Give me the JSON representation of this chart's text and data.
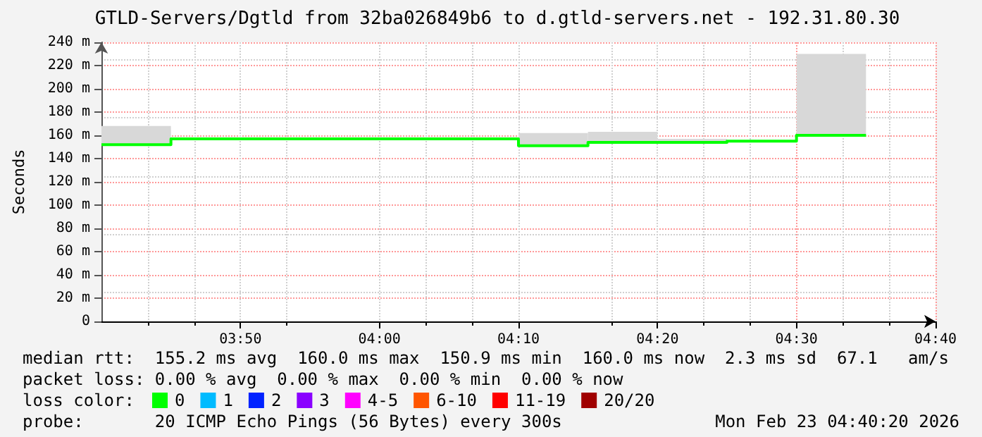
{
  "chart_data": {
    "type": "step",
    "title": "GTLD-Servers/Dgtld from 32ba026849b6 to d.gtld-servers.net - 192.31.80.30",
    "ylabel": "Seconds",
    "legend_title": "loss color:",
    "x": [
      "2026-02-23T03:40",
      "2026-02-23T03:45",
      "2026-02-23T03:50",
      "2026-02-23T03:55",
      "2026-02-23T04:00",
      "2026-02-23T04:05",
      "2026-02-23T04:10",
      "2026-02-23T04:15",
      "2026-02-23T04:20",
      "2026-02-23T04:25",
      "2026-02-23T04:30",
      "2026-02-23T04:35"
    ],
    "series": [
      {
        "name": "0",
        "color": "#00ff00",
        "values": [
          152,
          152,
          157,
          157,
          157,
          157,
          157,
          151,
          154,
          154,
          155,
          160
        ],
        "lower": [
          152,
          152,
          null,
          null,
          null,
          null,
          null,
          151,
          154,
          154,
          null,
          160
        ],
        "upper": [
          168,
          168,
          null,
          null,
          null,
          null,
          null,
          162,
          163,
          157,
          null,
          230
        ]
      },
      {
        "name": "1",
        "color": "#00bbff",
        "values": [
          null,
          null,
          null,
          null,
          null,
          null,
          null,
          null,
          null,
          null,
          null,
          null
        ]
      },
      {
        "name": "2",
        "color": "#0022ff",
        "values": [
          null,
          null,
          null,
          null,
          null,
          null,
          null,
          null,
          null,
          null,
          null,
          null
        ]
      },
      {
        "name": "3",
        "color": "#8a00ff",
        "values": [
          null,
          null,
          null,
          null,
          null,
          null,
          null,
          null,
          null,
          null,
          null,
          null
        ]
      },
      {
        "name": "4-5",
        "color": "#ff00ff",
        "values": [
          null,
          null,
          null,
          null,
          null,
          null,
          null,
          null,
          null,
          null,
          null,
          null
        ]
      },
      {
        "name": "6-10",
        "color": "#ff5500",
        "values": [
          null,
          null,
          null,
          null,
          null,
          null,
          null,
          null,
          null,
          null,
          null,
          null
        ]
      },
      {
        "name": "11-19",
        "color": "#ff0000",
        "values": [
          null,
          null,
          null,
          null,
          null,
          null,
          null,
          null,
          null,
          null,
          null,
          null
        ]
      },
      {
        "name": "20/20",
        "color": "#a00000",
        "values": [
          null,
          null,
          null,
          null,
          null,
          null,
          null,
          null,
          null,
          null,
          null,
          null
        ]
      }
    ],
    "xlim": [
      "2026-02-23T03:40",
      "2026-02-23T04:40"
    ],
    "xticks": [
      {
        "value": "2026-02-23T03:50",
        "label": "03:50"
      },
      {
        "value": "2026-02-23T04:00",
        "label": "04:00"
      },
      {
        "value": "2026-02-23T04:10",
        "label": "04:10"
      },
      {
        "value": "2026-02-23T04:20",
        "label": "04:20"
      },
      {
        "value": "2026-02-23T04:30",
        "label": "04:30"
      },
      {
        "value": "2026-02-23T04:40",
        "label": "04:40"
      }
    ],
    "ylim": [
      0,
      240
    ],
    "yticks": [
      0,
      {
        "value": 20,
        "label": "20 m"
      },
      {
        "value": 40,
        "label": "40 m"
      },
      {
        "value": 60,
        "label": "60 m"
      },
      {
        "value": 80,
        "label": "80 m"
      },
      {
        "value": 100,
        "label": "100 m"
      },
      {
        "value": 120,
        "label": "120 m"
      },
      {
        "value": 140,
        "label": "140 m"
      },
      {
        "value": 160,
        "label": "160 m"
      },
      {
        "value": 180,
        "label": "180 m"
      },
      {
        "value": 200,
        "label": "200 m"
      },
      {
        "value": 220,
        "label": "220 m"
      },
      {
        "value": 240,
        "label": "240 m"
      }
    ],
    "grid": true,
    "legend": "bottom",
    "marker": "none",
    "line_style": "solid",
    "annotations": [
      "median rtt:  155.2 ms avg  160.0 ms max  150.9 ms min  160.0 ms now  2.3 ms sd  67.1   am/s",
      "packet loss: 0.00 % avg  0.00 % max  0.00 % min  0.00 % now",
      "probe:       20 ICMP Echo Pings (56 Bytes) every 300s",
      "Mon Feb 23 04:40:20 2026"
    ]
  }
}
